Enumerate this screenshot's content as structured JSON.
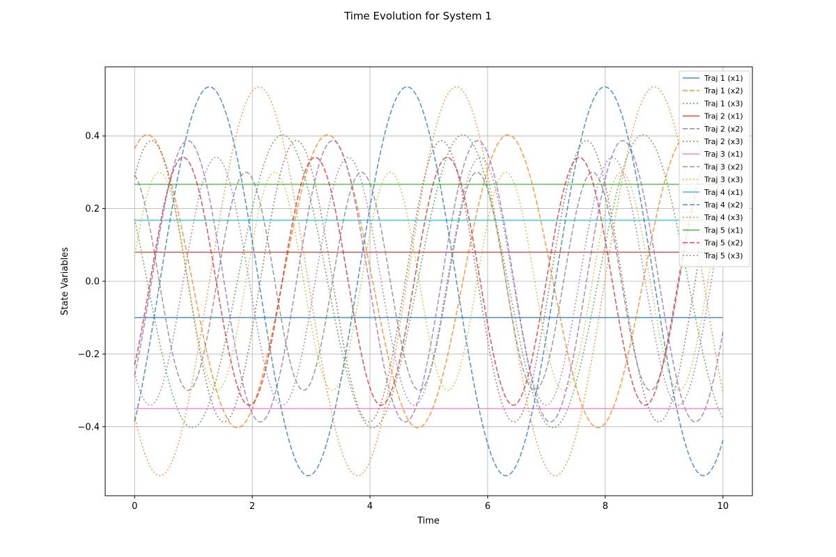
{
  "chart_data": {
    "type": "line",
    "title": "Time Evolution for System 1",
    "xlabel": "Time",
    "ylabel": "State Variables",
    "xlim": [
      -0.5,
      10.5
    ],
    "ylim": [
      -0.59,
      0.59
    ],
    "xticks": [
      0,
      2,
      4,
      6,
      8,
      10
    ],
    "xtick_labels": [
      "0",
      "2",
      "4",
      "6",
      "8",
      "10"
    ],
    "yticks": [
      -0.4,
      -0.2,
      0.0,
      0.2,
      0.4
    ],
    "ytick_labels": [
      "−0.4",
      "−0.2",
      "0.0",
      "0.2",
      "0.4"
    ],
    "grid": true,
    "legend_position": "top-right",
    "x_range": [
      0,
      10
    ],
    "series": [
      {
        "name": "Traj 1 (x1)",
        "color": "#1f77b4",
        "dash": "solid",
        "kind": "constant",
        "value": -0.1
      },
      {
        "name": "Traj 1 (x2)",
        "color": "#ff7f0e",
        "dash": "dashed",
        "kind": "oscillation",
        "amplitude": 0.403,
        "omega": 2.05,
        "phase": 1.13
      },
      {
        "name": "Traj 1 (x3)",
        "color": "#2ca02c",
        "dash": "dotted",
        "kind": "oscillation",
        "amplitude": 0.403,
        "omega": 2.05,
        "phase": 2.703
      },
      {
        "name": "Traj 2 (x1)",
        "color": "#d62728",
        "dash": "solid",
        "kind": "constant",
        "value": 0.08
      },
      {
        "name": "Traj 2 (x2)",
        "color": "#9467bd",
        "dash": "dashed",
        "kind": "oscillation",
        "amplitude": 0.387,
        "omega": 2.55,
        "phase": -0.734
      },
      {
        "name": "Traj 2 (x3)",
        "color": "#8c564b",
        "dash": "dotted",
        "kind": "oscillation",
        "amplitude": 0.387,
        "omega": 2.55,
        "phase": 0.837
      },
      {
        "name": "Traj 3 (x1)",
        "color": "#e377c2",
        "dash": "solid",
        "kind": "constant",
        "value": -0.35
      },
      {
        "name": "Traj 3 (x2)",
        "color": "#7f7f7f",
        "dash": "dashed",
        "kind": "oscillation",
        "amplitude": 0.3,
        "omega": 3.2,
        "phase": 1.8
      },
      {
        "name": "Traj 3 (x3)",
        "color": "#bcbd22",
        "dash": "dotted",
        "kind": "oscillation",
        "amplitude": 0.3,
        "omega": 3.2,
        "phase": 0.23
      },
      {
        "name": "Traj 4 (x1)",
        "color": "#17becf",
        "dash": "solid",
        "kind": "constant",
        "value": 0.168
      },
      {
        "name": "Traj 4 (x2)",
        "color": "#1f77b4",
        "dash": "dashed",
        "kind": "oscillation",
        "amplitude": 0.535,
        "omega": 1.87,
        "phase": -0.806
      },
      {
        "name": "Traj 4 (x3)",
        "color": "#ff7f0e",
        "dash": "dotted",
        "kind": "oscillation",
        "amplitude": 0.535,
        "omega": 1.87,
        "phase": -2.377
      },
      {
        "name": "Traj 5 (x1)",
        "color": "#2ca02c",
        "dash": "solid",
        "kind": "constant",
        "value": 0.267
      },
      {
        "name": "Traj 5 (x2)",
        "color": "#d62728",
        "dash": "dashed",
        "kind": "oscillation",
        "amplitude": 0.341,
        "omega": 2.8,
        "phase": -0.74
      },
      {
        "name": "Traj 5 (x3)",
        "color": "#9467bd",
        "dash": "dotted",
        "kind": "oscillation",
        "amplitude": 0.341,
        "omega": 2.8,
        "phase": -2.311
      }
    ]
  }
}
